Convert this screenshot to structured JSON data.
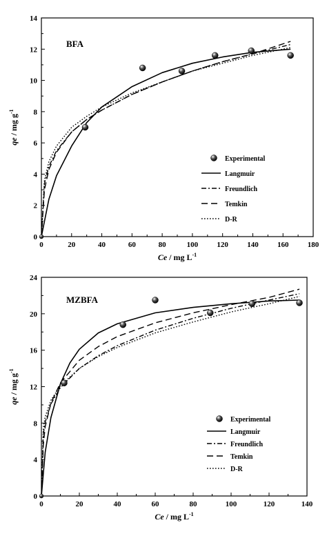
{
  "chart_data": [
    {
      "type": "scatter",
      "panel_label": "BFA",
      "xlabel_italic": "Ce",
      "xlabel_rest": " / mg L",
      "xlabel_sup": "-1",
      "ylabel_italic": "qe",
      "ylabel_rest": " / mg g",
      "ylabel_sup": "-1",
      "xlim": [
        0,
        180
      ],
      "ylim": [
        0,
        14
      ],
      "xticks": [
        "0",
        "20",
        "40",
        "60",
        "80",
        "100",
        "120",
        "140",
        "160",
        "180"
      ],
      "yticks": [
        "0",
        "2",
        "4",
        "6",
        "8",
        "10",
        "12",
        "14"
      ],
      "legend_position": "center-right",
      "series": [
        {
          "name": "Experimental",
          "style": "points",
          "x": [
            0,
            29,
            67,
            93,
            115,
            139,
            165
          ],
          "y": [
            0,
            7.0,
            10.8,
            10.6,
            11.6,
            11.9,
            11.6
          ]
        },
        {
          "name": "Langmuir",
          "style": "solid",
          "x": [
            0,
            5,
            10,
            20,
            30,
            40,
            60,
            80,
            100,
            120,
            140,
            165
          ],
          "y": [
            0,
            2.4,
            3.9,
            5.8,
            7.3,
            8.3,
            9.6,
            10.5,
            11.1,
            11.5,
            11.8,
            12.0
          ]
        },
        {
          "name": "Freundlich",
          "style": "dashdot",
          "x": [
            0,
            2,
            5,
            10,
            20,
            30,
            40,
            60,
            80,
            100,
            120,
            140,
            165
          ],
          "y": [
            0,
            3.4,
            4.5,
            5.5,
            6.7,
            7.5,
            8.1,
            9.1,
            9.9,
            10.6,
            11.2,
            11.7,
            12.3
          ]
        },
        {
          "name": "Temkin",
          "style": "dashed",
          "x": [
            0,
            2,
            5,
            10,
            20,
            30,
            40,
            60,
            80,
            100,
            120,
            140,
            165
          ],
          "y": [
            0,
            3.0,
            4.3,
            5.4,
            6.7,
            7.5,
            8.1,
            9.1,
            9.9,
            10.6,
            11.2,
            11.7,
            12.5
          ]
        },
        {
          "name": "D-R",
          "style": "dotted",
          "x": [
            0,
            2,
            5,
            10,
            20,
            30,
            40,
            60,
            80,
            100,
            120,
            140,
            165
          ],
          "y": [
            0,
            3.6,
            4.8,
            5.8,
            7.0,
            7.7,
            8.3,
            9.2,
            9.9,
            10.6,
            11.1,
            11.6,
            12.1
          ]
        }
      ]
    },
    {
      "type": "scatter",
      "panel_label": "MZBFA",
      "xlabel_italic": "Ce",
      "xlabel_rest": " / mg L",
      "xlabel_sup": "-1",
      "ylabel_italic": "qe",
      "ylabel_rest": " / mg g",
      "ylabel_sup": "-1",
      "xlim": [
        0,
        140
      ],
      "ylim": [
        0,
        24
      ],
      "xticks": [
        "0",
        "20",
        "40",
        "60",
        "80",
        "100",
        "120",
        "140"
      ],
      "yticks": [
        "0",
        "4",
        "8",
        "12",
        "16",
        "20",
        "24"
      ],
      "legend_position": "bottom-right",
      "series": [
        {
          "name": "Experimental",
          "style": "points",
          "x": [
            0,
            12,
            43,
            60,
            89,
            111,
            136
          ],
          "y": [
            0,
            12.4,
            18.8,
            21.5,
            20.1,
            21.1,
            21.2
          ]
        },
        {
          "name": "Langmuir",
          "style": "solid",
          "x": [
            0,
            2,
            5,
            10,
            15,
            20,
            30,
            40,
            60,
            80,
            100,
            120,
            136
          ],
          "y": [
            0,
            4.8,
            8.6,
            12.3,
            14.6,
            16.1,
            17.9,
            18.9,
            20.1,
            20.7,
            21.1,
            21.4,
            21.5
          ]
        },
        {
          "name": "Freundlich",
          "style": "dashdot",
          "x": [
            0,
            1,
            2,
            5,
            10,
            20,
            30,
            40,
            60,
            80,
            100,
            120,
            136
          ],
          "y": [
            0,
            6.8,
            8.1,
            10.1,
            11.9,
            14.0,
            15.4,
            16.5,
            18.2,
            19.5,
            20.6,
            21.5,
            22.2
          ]
        },
        {
          "name": "Temkin",
          "style": "dashed",
          "x": [
            0,
            1,
            2,
            5,
            10,
            20,
            30,
            40,
            60,
            80,
            100,
            120,
            136
          ],
          "y": [
            0,
            5.6,
            7.6,
            10.2,
            12.4,
            14.9,
            16.4,
            17.5,
            19.0,
            20.1,
            21.0,
            21.8,
            22.7
          ]
        },
        {
          "name": "D-R",
          "style": "dotted",
          "x": [
            0,
            1,
            2,
            5,
            10,
            20,
            30,
            40,
            60,
            80,
            100,
            120,
            136
          ],
          "y": [
            0,
            7.5,
            8.7,
            10.5,
            12.1,
            14.0,
            15.3,
            16.3,
            17.9,
            19.1,
            20.2,
            21.1,
            21.9
          ]
        }
      ]
    }
  ]
}
